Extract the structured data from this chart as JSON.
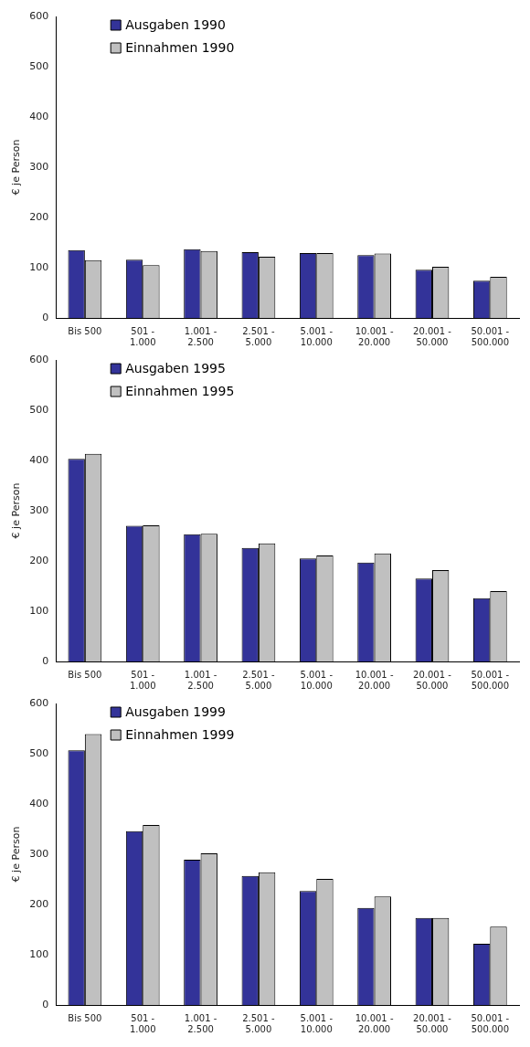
{
  "chart_data": [
    {
      "type": "bar",
      "ylabel": "€ je Person",
      "legend": "top left",
      "categories": [
        "Bis 500",
        "501 - 1.000",
        "1.001 - 2.500",
        "2.501 - 5.000",
        "5.001 - 10.000",
        "10.001 - 20.000",
        "20.001 - 50.000",
        "50.001 - 500.000"
      ],
      "ylim": [
        0,
        600
      ],
      "yticks": [
        0,
        100,
        200,
        300,
        400,
        500,
        600
      ],
      "series": [
        {
          "name": "Ausgaben 1990",
          "color": "#333399",
          "values": [
            135,
            116,
            137,
            131,
            129,
            125,
            96,
            74
          ]
        },
        {
          "name": "Einnahmen 1990",
          "color": "#c0c0c0",
          "values": [
            115,
            105,
            133,
            122,
            129,
            128,
            102,
            82
          ]
        }
      ]
    },
    {
      "type": "bar",
      "ylabel": "€ je Person",
      "legend": "top left",
      "categories": [
        "Bis 500",
        "501 - 1.000",
        "1.001 - 2.500",
        "2.501 - 5.000",
        "5.001 - 10.000",
        "10.001 - 20.000",
        "20.001 - 50.000",
        "50.001 - 500.000"
      ],
      "ylim": [
        0,
        600
      ],
      "yticks": [
        0,
        100,
        200,
        300,
        400,
        500,
        600
      ],
      "series": [
        {
          "name": "Ausgaben 1995",
          "color": "#333399",
          "values": [
            403,
            270,
            253,
            226,
            205,
            197,
            165,
            126
          ]
        },
        {
          "name": "Einnahmen 1995",
          "color": "#c0c0c0",
          "values": [
            413,
            271,
            254,
            235,
            211,
            215,
            182,
            140
          ]
        }
      ]
    },
    {
      "type": "bar",
      "ylabel": "€ je Person",
      "legend": "top left",
      "categories": [
        "Bis 500",
        "501 - 1.000",
        "1.001 - 2.500",
        "2.501 - 5.000",
        "5.001 - 10.000",
        "10.001 - 20.000",
        "20.001 - 50.000",
        "50.001 - 500.000"
      ],
      "ylim": [
        0,
        600
      ],
      "yticks": [
        0,
        100,
        200,
        300,
        400,
        500,
        600
      ],
      "series": [
        {
          "name": "Ausgaben 1999",
          "color": "#333399",
          "values": [
            507,
            346,
            289,
            257,
            227,
            193,
            173,
            122
          ]
        },
        {
          "name": "Einnahmen 1999",
          "color": "#c0c0c0",
          "values": [
            539,
            358,
            302,
            264,
            251,
            216,
            173,
            156
          ]
        }
      ]
    }
  ]
}
